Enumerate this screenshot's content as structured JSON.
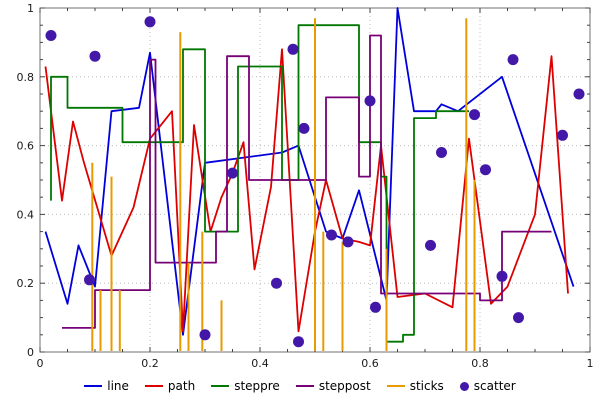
{
  "figure": {
    "background": "#ffffff",
    "frame_color": "#707070",
    "grid_color": "#bdbdbd",
    "tick_color": "#444444"
  },
  "chart_data": {
    "type": "line",
    "title": "",
    "xlabel": "",
    "ylabel": "",
    "xlim": [
      0,
      1
    ],
    "ylim": [
      0,
      1
    ],
    "grid": true,
    "legend_position": "bottom",
    "xticks": [
      {
        "v": 0,
        "label": "0"
      },
      {
        "v": 0.2,
        "label": "0.2"
      },
      {
        "v": 0.4,
        "label": "0.4"
      },
      {
        "v": 0.6,
        "label": "0.6"
      },
      {
        "v": 0.8,
        "label": "0.8"
      },
      {
        "v": 1,
        "label": "1"
      }
    ],
    "yticks": [
      {
        "v": 0,
        "label": "0"
      },
      {
        "v": 0.2,
        "label": "0.2"
      },
      {
        "v": 0.4,
        "label": "0.4"
      },
      {
        "v": 0.6,
        "label": "0.6"
      },
      {
        "v": 0.8,
        "label": "0.8"
      },
      {
        "v": 1,
        "label": "1"
      }
    ],
    "series": [
      {
        "name": "line",
        "type": "line",
        "color": "#0000dd",
        "points": [
          [
            0.01,
            0.35
          ],
          [
            0.05,
            0.14
          ],
          [
            0.07,
            0.31
          ],
          [
            0.1,
            0.19
          ],
          [
            0.13,
            0.7
          ],
          [
            0.18,
            0.71
          ],
          [
            0.2,
            0.87
          ],
          [
            0.26,
            0.05
          ],
          [
            0.3,
            0.55
          ],
          [
            0.44,
            0.58
          ],
          [
            0.47,
            0.6
          ],
          [
            0.52,
            0.35
          ],
          [
            0.55,
            0.33
          ],
          [
            0.58,
            0.47
          ],
          [
            0.63,
            0.15
          ],
          [
            0.65,
            1.0
          ],
          [
            0.68,
            0.7
          ],
          [
            0.72,
            0.7
          ],
          [
            0.73,
            0.72
          ],
          [
            0.76,
            0.7
          ],
          [
            0.84,
            0.8
          ],
          [
            0.97,
            0.19
          ]
        ]
      },
      {
        "name": "path",
        "type": "line",
        "color": "#dd0000",
        "points": [
          [
            0.01,
            0.83
          ],
          [
            0.04,
            0.44
          ],
          [
            0.06,
            0.67
          ],
          [
            0.08,
            0.55
          ],
          [
            0.13,
            0.28
          ],
          [
            0.17,
            0.42
          ],
          [
            0.2,
            0.62
          ],
          [
            0.24,
            0.7
          ],
          [
            0.26,
            0.06
          ],
          [
            0.28,
            0.66
          ],
          [
            0.31,
            0.35
          ],
          [
            0.33,
            0.45
          ],
          [
            0.35,
            0.52
          ],
          [
            0.37,
            0.61
          ],
          [
            0.39,
            0.24
          ],
          [
            0.42,
            0.48
          ],
          [
            0.44,
            0.88
          ],
          [
            0.47,
            0.06
          ],
          [
            0.5,
            0.35
          ],
          [
            0.52,
            0.5
          ],
          [
            0.55,
            0.33
          ],
          [
            0.58,
            0.32
          ],
          [
            0.6,
            0.31
          ],
          [
            0.62,
            0.6
          ],
          [
            0.65,
            0.16
          ],
          [
            0.7,
            0.17
          ],
          [
            0.75,
            0.13
          ],
          [
            0.78,
            0.62
          ],
          [
            0.82,
            0.14
          ],
          [
            0.85,
            0.19
          ],
          [
            0.9,
            0.4
          ],
          [
            0.93,
            0.86
          ],
          [
            0.96,
            0.17
          ]
        ]
      },
      {
        "name": "steppre",
        "type": "step-pre",
        "color": "#007700",
        "points": [
          [
            0.02,
            0.44
          ],
          [
            0.05,
            0.8
          ],
          [
            0.15,
            0.71
          ],
          [
            0.26,
            0.61
          ],
          [
            0.3,
            0.88
          ],
          [
            0.36,
            0.35
          ],
          [
            0.44,
            0.83
          ],
          [
            0.47,
            0.5
          ],
          [
            0.58,
            0.95
          ],
          [
            0.62,
            0.61
          ],
          [
            0.63,
            0.51
          ],
          [
            0.66,
            0.03
          ],
          [
            0.68,
            0.05
          ],
          [
            0.72,
            0.68
          ],
          [
            0.78,
            0.7
          ]
        ]
      },
      {
        "name": "steppost",
        "type": "step-post",
        "color": "#770077",
        "points": [
          [
            0.04,
            0.07
          ],
          [
            0.1,
            0.18
          ],
          [
            0.2,
            0.85
          ],
          [
            0.21,
            0.26
          ],
          [
            0.32,
            0.35
          ],
          [
            0.34,
            0.86
          ],
          [
            0.38,
            0.5
          ],
          [
            0.52,
            0.74
          ],
          [
            0.58,
            0.51
          ],
          [
            0.6,
            0.92
          ],
          [
            0.62,
            0.17
          ],
          [
            0.8,
            0.15
          ],
          [
            0.84,
            0.35
          ],
          [
            0.93,
            0.35
          ]
        ]
      },
      {
        "name": "sticks",
        "type": "sticks",
        "color": "#e89b00",
        "points": [
          [
            0.095,
            0.55
          ],
          [
            0.11,
            0.18
          ],
          [
            0.13,
            0.51
          ],
          [
            0.145,
            0.18
          ],
          [
            0.255,
            0.93
          ],
          [
            0.27,
            0.26
          ],
          [
            0.295,
            0.35
          ],
          [
            0.33,
            0.15
          ],
          [
            0.5,
            0.97
          ],
          [
            0.515,
            0.35
          ],
          [
            0.55,
            0.32
          ],
          [
            0.63,
            0.3
          ],
          [
            0.775,
            0.97
          ],
          [
            0.79,
            0.5
          ]
        ]
      },
      {
        "name": "scatter",
        "type": "scatter",
        "color": "#4318a8",
        "points": [
          [
            0.02,
            0.92
          ],
          [
            0.1,
            0.86
          ],
          [
            0.2,
            0.96
          ],
          [
            0.09,
            0.21
          ],
          [
            0.3,
            0.05
          ],
          [
            0.35,
            0.52
          ],
          [
            0.43,
            0.2
          ],
          [
            0.46,
            0.88
          ],
          [
            0.47,
            0.03
          ],
          [
            0.48,
            0.65
          ],
          [
            0.53,
            0.34
          ],
          [
            0.56,
            0.32
          ],
          [
            0.6,
            0.73
          ],
          [
            0.61,
            0.13
          ],
          [
            0.71,
            0.31
          ],
          [
            0.73,
            0.58
          ],
          [
            0.79,
            0.69
          ],
          [
            0.81,
            0.53
          ],
          [
            0.84,
            0.22
          ],
          [
            0.86,
            0.85
          ],
          [
            0.87,
            0.1
          ],
          [
            0.95,
            0.63
          ],
          [
            0.98,
            0.75
          ]
        ]
      }
    ]
  }
}
